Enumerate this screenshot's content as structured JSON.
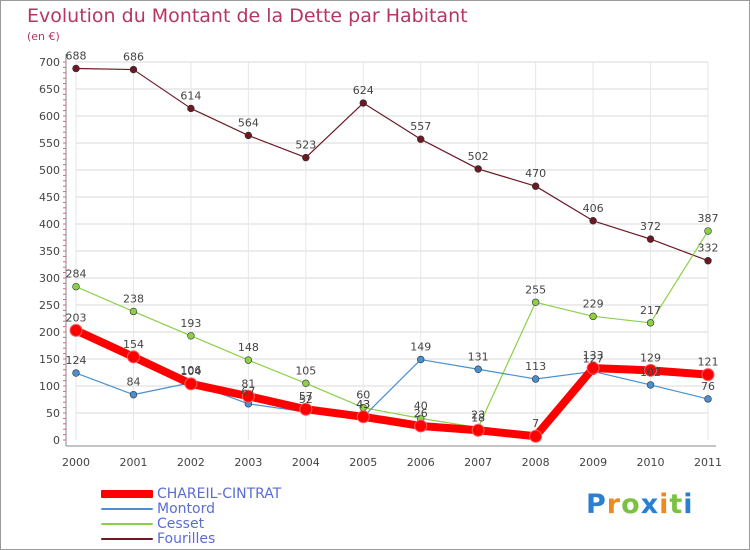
{
  "chart_data": {
    "type": "line",
    "title": "Evolution du Montant de la Dette par Habitant",
    "unit_label": "(en €)",
    "xlabel": "",
    "ylabel": "",
    "categories": [
      "2000",
      "2001",
      "2002",
      "2003",
      "2004",
      "2005",
      "2006",
      "2007",
      "2008",
      "2009",
      "2010",
      "2011"
    ],
    "ylim": [
      0,
      700
    ],
    "yticks": [
      0,
      50,
      100,
      150,
      200,
      250,
      300,
      350,
      400,
      450,
      500,
      550,
      600,
      650,
      700
    ],
    "grid": true,
    "legend_position": "bottom-left",
    "series": [
      {
        "name": "Fourilles",
        "color": "#6b1a24",
        "values": [
          688,
          686,
          614,
          564,
          523,
          624,
          557,
          502,
          470,
          406,
          372,
          332
        ]
      },
      {
        "name": "Cesset",
        "color": "#8bd048",
        "values": [
          284,
          238,
          193,
          148,
          105,
          60,
          40,
          23,
          255,
          229,
          217,
          387
        ]
      },
      {
        "name": "Montord",
        "color": "#4a90d0",
        "values": [
          124,
          84,
          106,
          67,
          52,
          43,
          149,
          131,
          113,
          127,
          102,
          76
        ]
      },
      {
        "name": "CHAREIL-CINTRAT",
        "color": "#ff0000",
        "values": [
          203,
          154,
          104,
          81,
          57,
          43,
          26,
          18,
          7,
          133,
          129,
          121
        ]
      }
    ],
    "legend_order": [
      "CHAREIL-CINTRAT",
      "Montord",
      "Cesset",
      "Fourilles"
    ]
  },
  "logo": {
    "letters": [
      "P",
      "r",
      "o",
      "x",
      "i",
      "t",
      "i"
    ],
    "colors": [
      "#2a7fd0",
      "#f08a1e",
      "#7cc242",
      "#2a7fd0",
      "#f08a1e",
      "#7cc242",
      "#2a7fd0"
    ]
  }
}
